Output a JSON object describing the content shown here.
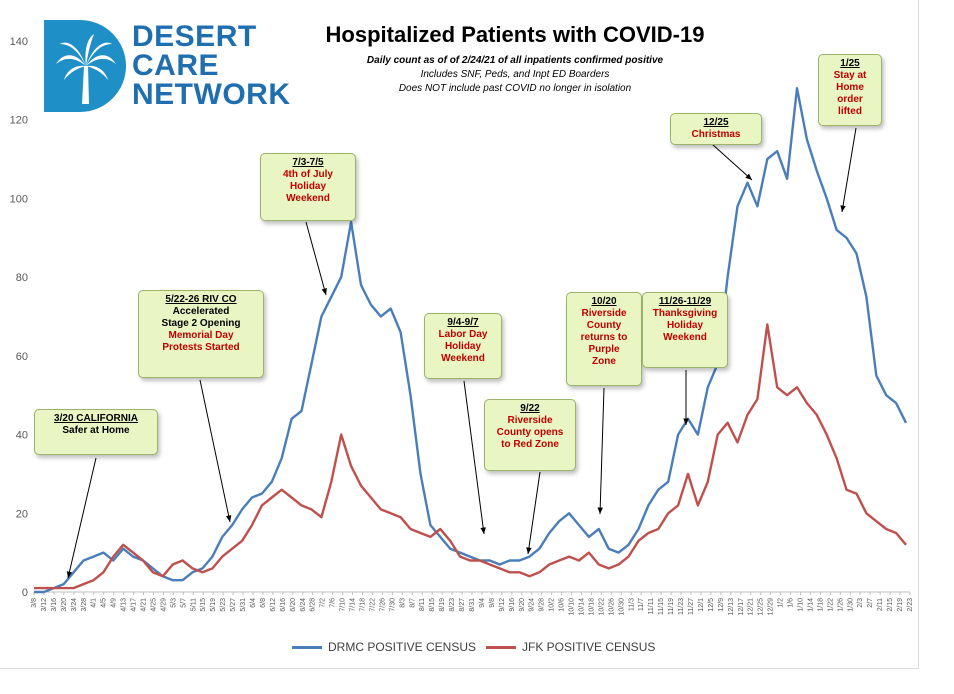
{
  "logo": {
    "line1": "DESERT",
    "line2": "CARE",
    "line3": "NETWORK"
  },
  "chart_data": {
    "type": "line",
    "title": "Hospitalized Patients with COVID-19",
    "subtitles": [
      "Daily count as of of 2/24/21 of all inpatients confirmed positive",
      "Includes SNF, Peds, and Inpt ED Boarders",
      "Does NOT include past COVID no longer in isolation"
    ],
    "xlabel": "",
    "ylabel": "",
    "ylim": [
      0,
      140
    ],
    "yticks": [
      0,
      20,
      40,
      60,
      80,
      100,
      120,
      140
    ],
    "grid": false,
    "legend_position": "bottom",
    "x_tick_labels": [
      "3/8",
      "3/12",
      "3/16",
      "3/20",
      "3/24",
      "3/28",
      "4/1",
      "4/5",
      "4/9",
      "4/13",
      "4/17",
      "4/21",
      "4/25",
      "4/29",
      "5/3",
      "5/7",
      "5/11",
      "5/15",
      "5/19",
      "5/23",
      "5/27",
      "5/31",
      "6/4",
      "6/8",
      "6/12",
      "6/16",
      "6/20",
      "6/24",
      "6/28",
      "7/2",
      "7/6",
      "7/10",
      "7/14",
      "7/18",
      "7/22",
      "7/26",
      "7/30",
      "8/3",
      "8/7",
      "8/11",
      "8/15",
      "8/19",
      "8/23",
      "8/27",
      "8/31",
      "9/4",
      "9/8",
      "9/12",
      "9/16",
      "9/20",
      "9/24",
      "9/28",
      "10/2",
      "10/6",
      "10/10",
      "10/14",
      "10/18",
      "10/22",
      "10/26",
      "10/30",
      "11/3",
      "11/7",
      "11/11",
      "11/15",
      "11/19",
      "11/23",
      "11/27",
      "12/1",
      "12/5",
      "12/9",
      "12/13",
      "12/17",
      "12/21",
      "12/25",
      "12/29",
      "1/2",
      "1/6",
      "1/10",
      "1/14",
      "1/18",
      "1/22",
      "1/26",
      "1/30",
      "2/3",
      "2/7",
      "2/11",
      "2/15",
      "2/19",
      "2/23"
    ],
    "series": [
      {
        "name": "DRMC POSITIVE CENSUS",
        "color": "#4a7ebb",
        "values": [
          0,
          0,
          1,
          2,
          5,
          8,
          9,
          10,
          8,
          11,
          9,
          8,
          6,
          4,
          3,
          3,
          5,
          6,
          9,
          14,
          17,
          21,
          24,
          25,
          28,
          34,
          44,
          46,
          58,
          70,
          75,
          80,
          94,
          78,
          73,
          70,
          72,
          66,
          50,
          30,
          17,
          14,
          11,
          10,
          9,
          8,
          8,
          7,
          8,
          8,
          9,
          11,
          15,
          18,
          20,
          17,
          14,
          16,
          11,
          10,
          12,
          16,
          22,
          26,
          28,
          40,
          44,
          40,
          52,
          58,
          80,
          98,
          104,
          98,
          110,
          112,
          105,
          128,
          115,
          107,
          100,
          92,
          90,
          86,
          75,
          55,
          50,
          48,
          43
        ]
      },
      {
        "name": "JFK POSITIVE CENSUS",
        "color": "#c0504d",
        "values": [
          1,
          1,
          1,
          1,
          1,
          2,
          3,
          5,
          9,
          12,
          10,
          8,
          5,
          4,
          7,
          8,
          6,
          5,
          6,
          9,
          11,
          13,
          17,
          22,
          24,
          26,
          24,
          22,
          21,
          19,
          28,
          40,
          32,
          27,
          24,
          21,
          20,
          19,
          16,
          15,
          14,
          16,
          13,
          9,
          8,
          8,
          7,
          6,
          5,
          5,
          4,
          5,
          7,
          8,
          9,
          8,
          10,
          7,
          6,
          7,
          9,
          13,
          15,
          16,
          20,
          22,
          30,
          22,
          28,
          40,
          43,
          38,
          45,
          49,
          68,
          52,
          50,
          52,
          48,
          45,
          40,
          34,
          26,
          25,
          20,
          18,
          16,
          15,
          12
        ]
      }
    ],
    "annotations": [
      {
        "head": "3/20 CALIFORNIA",
        "black": [
          "Safer at Home"
        ],
        "red": []
      },
      {
        "head": "5/22-26 RIV CO",
        "black": [
          "Accelerated",
          "Stage 2 Opening"
        ],
        "red": [
          "Memorial Day",
          "Protests Started"
        ]
      },
      {
        "head": "7/3-7/5",
        "black": [],
        "red": [
          "4th of July",
          "Holiday",
          "Weekend"
        ]
      },
      {
        "head": "9/4-9/7",
        "black": [],
        "red": [
          "Labor Day",
          "Holiday",
          "Weekend"
        ]
      },
      {
        "head": "9/22",
        "black": [],
        "red": [
          "Riverside",
          "County opens",
          "to Red Zone"
        ]
      },
      {
        "head": "10/20",
        "black": [],
        "red": [
          "Riverside",
          "County",
          "returns to",
          "Purple",
          "Zone"
        ]
      },
      {
        "head": "11/26-11/29",
        "black": [],
        "red": [
          "Thanksgiving",
          "Holiday",
          "Weekend"
        ]
      },
      {
        "head": "12/25",
        "black": [],
        "red": [
          "Christmas"
        ]
      },
      {
        "head": "1/25",
        "black": [],
        "red": [
          "Stay  at",
          "Home",
          "order",
          "lifted"
        ]
      }
    ]
  }
}
